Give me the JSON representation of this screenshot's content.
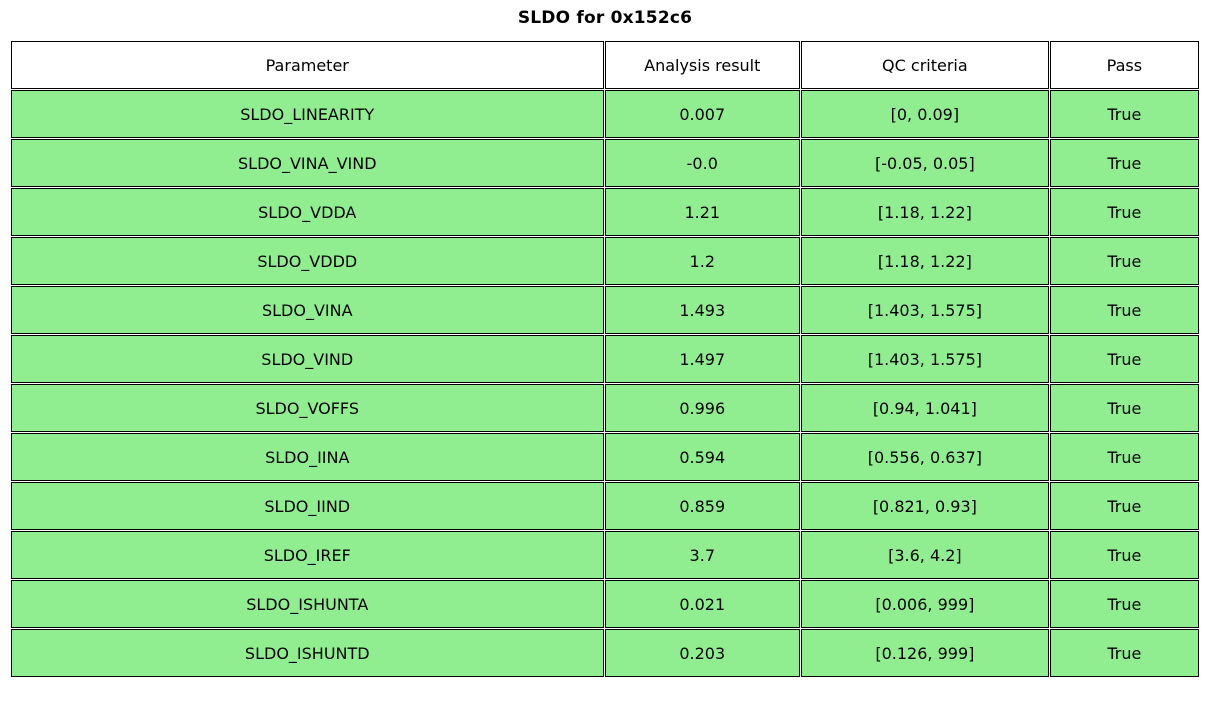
{
  "title": "SLDO for 0x152c6",
  "chart_data": {
    "type": "table",
    "title": "SLDO for 0x152c6",
    "columns": [
      "Parameter",
      "Analysis result",
      "QC criteria",
      "Pass"
    ],
    "rows": [
      [
        "SLDO_LINEARITY",
        "0.007",
        "[0, 0.09]",
        "True"
      ],
      [
        "SLDO_VINA_VIND",
        "-0.0",
        "[-0.05, 0.05]",
        "True"
      ],
      [
        "SLDO_VDDA",
        "1.21",
        "[1.18, 1.22]",
        "True"
      ],
      [
        "SLDO_VDDD",
        "1.2",
        "[1.18, 1.22]",
        "True"
      ],
      [
        "SLDO_VINA",
        "1.493",
        "[1.403, 1.575]",
        "True"
      ],
      [
        "SLDO_VIND",
        "1.497",
        "[1.403, 1.575]",
        "True"
      ],
      [
        "SLDO_VOFFS",
        "0.996",
        "[0.94, 1.041]",
        "True"
      ],
      [
        "SLDO_IINA",
        "0.594",
        "[0.556, 0.637]",
        "True"
      ],
      [
        "SLDO_IIND",
        "0.859",
        "[0.821, 0.93]",
        "True"
      ],
      [
        "SLDO_IREF",
        "3.7",
        "[3.6, 4.2]",
        "True"
      ],
      [
        "SLDO_ISHUNTA",
        "0.021",
        "[0.006, 999]",
        "True"
      ],
      [
        "SLDO_ISHUNTD",
        "0.203",
        "[0.126, 999]",
        "True"
      ]
    ],
    "colors": {
      "pass_row_bg": "#90EE90",
      "header_bg": "#FFFFFF",
      "border": "#000000",
      "text": "#000000"
    },
    "layout": {
      "legend": "none",
      "grid": "table-borders",
      "all_rows_pass": true
    }
  }
}
